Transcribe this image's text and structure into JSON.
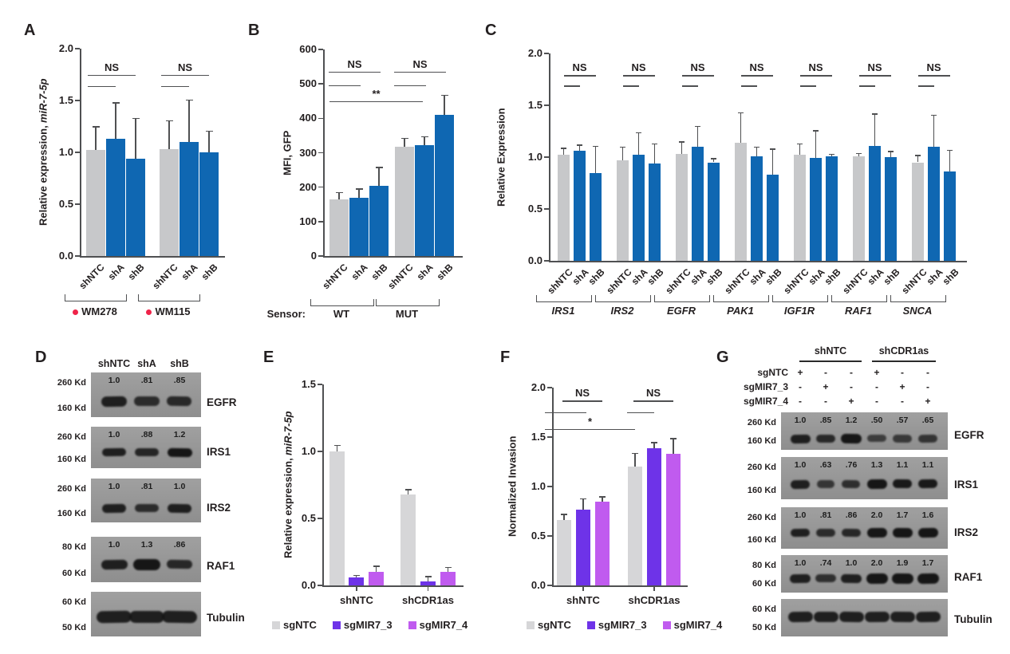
{
  "colors": {
    "gray": "#c7c8ca",
    "blue": "#0f67b2",
    "violet": "#6e33e8",
    "orchid": "#c05bef",
    "gray_light": "#d6d6d8",
    "axis": "#4f5052",
    "text": "#231f20",
    "red_dot": "#ef2349",
    "blot_bg_top": "#a0a0a0",
    "blot_bg_bottom": "#8e8e8e",
    "blot_band": "#161616"
  },
  "chart_data": [
    {
      "id": "A",
      "type": "bar",
      "panel_label": "A",
      "ylabel_plain": "Relative expression, ",
      "ylabel_italic": "miR-7-5p",
      "ylim": [
        0,
        2.0
      ],
      "yticks": [
        0,
        0.5,
        1,
        1.5,
        2
      ],
      "ytick_labels": [
        "0.0",
        "0.5",
        "1.0",
        "1.5",
        "2.0"
      ],
      "bar_labels": [
        "shNTC",
        "shA",
        "shB",
        "shNTC",
        "shA",
        "shB"
      ],
      "series_colors": [
        "gray",
        "blue",
        "blue",
        "gray",
        "blue",
        "blue"
      ],
      "values": [
        1.02,
        1.13,
        0.94,
        1.03,
        1.1,
        1.0
      ],
      "errors_up": [
        0.22,
        0.34,
        0.38,
        0.27,
        0.4,
        0.2
      ],
      "groups": [
        {
          "label": "WM278",
          "dot": true,
          "bars": [
            0,
            2
          ]
        },
        {
          "label": "WM115",
          "dot": true,
          "bars": [
            3,
            5
          ]
        }
      ],
      "significance": [
        {
          "bars": [
            0,
            2
          ],
          "y": 1.75,
          "label": "NS"
        },
        {
          "bars": [
            0,
            1
          ],
          "y": 1.64,
          "label": ""
        },
        {
          "bars": [
            3,
            5
          ],
          "y": 1.75,
          "label": "NS"
        },
        {
          "bars": [
            3,
            4
          ],
          "y": 1.64,
          "label": ""
        }
      ]
    },
    {
      "id": "B",
      "type": "bar",
      "panel_label": "B",
      "ylabel_plain": "MFI, GFP",
      "ylabel_italic": "",
      "ylim": [
        0,
        600
      ],
      "yticks": [
        0,
        100,
        200,
        300,
        400,
        500,
        600
      ],
      "ytick_labels": [
        "0",
        "100",
        "200",
        "300",
        "400",
        "500",
        "600"
      ],
      "bar_labels": [
        "shNTC",
        "shA",
        "shB",
        "shNTC",
        "shA",
        "shB"
      ],
      "series_colors": [
        "gray",
        "blue",
        "blue",
        "gray",
        "blue",
        "blue"
      ],
      "values": [
        165,
        170,
        205,
        318,
        321,
        410
      ],
      "errors_up": [
        18,
        23,
        50,
        22,
        24,
        55
      ],
      "x_prefix": "Sensor:",
      "groups": [
        {
          "label": "WT",
          "bars": [
            0,
            2
          ]
        },
        {
          "label": "MUT",
          "bars": [
            3,
            5
          ]
        }
      ],
      "significance": [
        {
          "bars": [
            0,
            2
          ],
          "y": 535,
          "label": "NS"
        },
        {
          "bars": [
            0,
            1
          ],
          "y": 496,
          "label": ""
        },
        {
          "bars": [
            3,
            5
          ],
          "y": 535,
          "label": "NS"
        },
        {
          "bars": [
            3,
            4
          ],
          "y": 496,
          "label": ""
        },
        {
          "bars": [
            0,
            3
          ],
          "y": 450,
          "label": "**"
        }
      ]
    },
    {
      "id": "C",
      "type": "bar",
      "panel_label": "C",
      "ylabel_plain": "Relative Expression",
      "ylabel_italic": "",
      "ylim": [
        0,
        2.0
      ],
      "yticks": [
        0,
        0.5,
        1,
        1.5,
        2
      ],
      "ytick_labels": [
        "0.0",
        "0.5",
        "1.0",
        "1.5",
        "2.0"
      ],
      "bar_labels": [
        "shNTC",
        "shA",
        "shB",
        "shNTC",
        "shA",
        "shB",
        "shNTC",
        "shA",
        "shB",
        "shNTC",
        "shA",
        "shB",
        "shNTC",
        "shA",
        "shB",
        "shNTC",
        "shA",
        "shB",
        "shNTC",
        "shA",
        "shB"
      ],
      "series_colors": [
        "gray",
        "blue",
        "blue",
        "gray",
        "blue",
        "blue",
        "gray",
        "blue",
        "blue",
        "gray",
        "blue",
        "blue",
        "gray",
        "blue",
        "blue",
        "gray",
        "blue",
        "blue",
        "gray",
        "blue",
        "blue"
      ],
      "values": [
        1.02,
        1.06,
        0.85,
        0.97,
        1.02,
        0.94,
        1.03,
        1.1,
        0.95,
        1.14,
        1.01,
        0.83,
        1.02,
        0.99,
        1.01,
        1.01,
        1.11,
        1.0,
        0.95,
        1.1,
        0.86
      ],
      "errors_up": [
        0.06,
        0.05,
        0.25,
        0.12,
        0.21,
        0.18,
        0.11,
        0.19,
        0.03,
        0.28,
        0.08,
        0.24,
        0.1,
        0.26,
        0.01,
        0.02,
        0.3,
        0.05,
        0.06,
        0.3,
        0.2
      ],
      "groups": [
        {
          "label": "IRS1",
          "bars": [
            0,
            2
          ]
        },
        {
          "label": "IRS2",
          "bars": [
            3,
            5
          ]
        },
        {
          "label": "EGFR",
          "bars": [
            6,
            8
          ]
        },
        {
          "label": "PAK1",
          "bars": [
            9,
            11
          ]
        },
        {
          "label": "IGF1R",
          "bars": [
            12,
            14
          ]
        },
        {
          "label": "RAF1",
          "bars": [
            15,
            17
          ]
        },
        {
          "label": "SNCA",
          "bars": [
            18,
            20
          ]
        }
      ],
      "significance": [
        {
          "bars": [
            0,
            2
          ],
          "y": 1.79,
          "label": "NS"
        },
        {
          "bars": [
            0,
            1
          ],
          "y": 1.69,
          "label": ""
        },
        {
          "bars": [
            3,
            5
          ],
          "y": 1.79,
          "label": "NS"
        },
        {
          "bars": [
            3,
            4
          ],
          "y": 1.69,
          "label": ""
        },
        {
          "bars": [
            6,
            8
          ],
          "y": 1.79,
          "label": "NS"
        },
        {
          "bars": [
            6,
            7
          ],
          "y": 1.69,
          "label": ""
        },
        {
          "bars": [
            9,
            11
          ],
          "y": 1.79,
          "label": "NS"
        },
        {
          "bars": [
            9,
            10
          ],
          "y": 1.69,
          "label": ""
        },
        {
          "bars": [
            12,
            14
          ],
          "y": 1.79,
          "label": "NS"
        },
        {
          "bars": [
            12,
            13
          ],
          "y": 1.69,
          "label": ""
        },
        {
          "bars": [
            15,
            17
          ],
          "y": 1.79,
          "label": "NS"
        },
        {
          "bars": [
            15,
            16
          ],
          "y": 1.69,
          "label": ""
        },
        {
          "bars": [
            18,
            20
          ],
          "y": 1.79,
          "label": "NS"
        },
        {
          "bars": [
            18,
            19
          ],
          "y": 1.69,
          "label": ""
        }
      ]
    },
    {
      "id": "E",
      "type": "bar",
      "panel_label": "E",
      "ylabel_plain": "Relative expression, ",
      "ylabel_italic": "miR-7-5p",
      "ylim": [
        0,
        1.5
      ],
      "yticks": [
        0,
        0.5,
        1,
        1.5
      ],
      "ytick_labels": [
        "0.0",
        "0.5",
        "1.0",
        "1.5"
      ],
      "bar_labels": [
        "",
        "",
        "",
        "",
        "",
        ""
      ],
      "series_colors": [
        "gray_light",
        "violet",
        "orchid",
        "gray_light",
        "violet",
        "orchid"
      ],
      "values": [
        1.0,
        0.06,
        0.1,
        0.68,
        0.03,
        0.1
      ],
      "errors_up": [
        0.04,
        0.01,
        0.04,
        0.03,
        0.03,
        0.03
      ],
      "groups": [
        {
          "label": "shNTC",
          "bars": [
            0,
            2
          ]
        },
        {
          "label": "shCDR1as",
          "bars": [
            3,
            5
          ]
        }
      ],
      "significance": [],
      "legend": [
        {
          "label": "sgNTC",
          "color": "gray_light"
        },
        {
          "label": "sgMIR7_3",
          "color": "violet"
        },
        {
          "label": "sgMIR7_4",
          "color": "orchid"
        }
      ]
    },
    {
      "id": "F",
      "type": "bar",
      "panel_label": "F",
      "ylabel_plain": "Normalized Invasion",
      "ylabel_italic": "",
      "ylim": [
        0,
        2.0
      ],
      "yticks": [
        0,
        0.5,
        1,
        1.5,
        2
      ],
      "ytick_labels": [
        "0.0",
        "0.5",
        "1.0",
        "1.5",
        "2.0"
      ],
      "bar_labels": [
        "",
        "",
        "",
        "",
        "",
        ""
      ],
      "series_colors": [
        "gray_light",
        "violet",
        "orchid",
        "gray_light",
        "violet",
        "orchid"
      ],
      "values": [
        0.66,
        0.77,
        0.85,
        1.2,
        1.39,
        1.33
      ],
      "errors_up": [
        0.05,
        0.1,
        0.04,
        0.13,
        0.05,
        0.15
      ],
      "groups": [
        {
          "label": "shNTC",
          "bars": [
            0,
            2
          ]
        },
        {
          "label": "shCDR1as",
          "bars": [
            3,
            5
          ]
        }
      ],
      "significance": [
        {
          "bars": [
            0,
            2
          ],
          "y": 1.87,
          "label": "NS"
        },
        {
          "bars": [
            0,
            1
          ],
          "y": 1.75,
          "label": ""
        },
        {
          "bars": [
            3,
            5
          ],
          "y": 1.87,
          "label": "NS"
        },
        {
          "bars": [
            3,
            4
          ],
          "y": 1.75,
          "label": ""
        },
        {
          "bars": [
            0,
            3
          ],
          "y": 1.58,
          "label": "*"
        }
      ],
      "legend": [
        {
          "label": "sgNTC",
          "color": "gray_light"
        },
        {
          "label": "sgMIR7_3",
          "color": "violet"
        },
        {
          "label": "sgMIR7_4",
          "color": "orchid"
        }
      ]
    }
  ],
  "blots": [
    {
      "id": "D",
      "panel_label": "D",
      "col_labels": [
        "shNTC",
        "shA",
        "shB"
      ],
      "rows": [
        {
          "protein": "EGFR",
          "marker_top": "260 Kd",
          "marker_bottom": "160 Kd",
          "values": [
            "1.0",
            ".81",
            ".85"
          ]
        },
        {
          "protein": "IRS1",
          "marker_top": "260 Kd",
          "marker_bottom": "160 Kd",
          "values": [
            "1.0",
            ".88",
            "1.2"
          ]
        },
        {
          "protein": "IRS2",
          "marker_top": "260 Kd",
          "marker_bottom": "160 Kd",
          "values": [
            "1.0",
            ".81",
            "1.0"
          ]
        },
        {
          "protein": "RAF1",
          "marker_top": "80 Kd",
          "marker_bottom": "60 Kd",
          "values": [
            "1.0",
            "1.3",
            ".86"
          ]
        },
        {
          "protein": "Tubulin",
          "marker_top": "60 Kd",
          "marker_bottom": "50 Kd",
          "values": []
        }
      ]
    },
    {
      "id": "G",
      "panel_label": "G",
      "group_headers": [
        "shNTC",
        "shCDR1as"
      ],
      "sg_rows": [
        {
          "label": "sgNTC",
          "signs": [
            "+",
            "-",
            "-",
            "+",
            "-",
            "-"
          ]
        },
        {
          "label": "sgMIR7_3",
          "signs": [
            "-",
            "+",
            "-",
            "-",
            "+",
            "-"
          ]
        },
        {
          "label": "sgMIR7_4",
          "signs": [
            "-",
            "-",
            "+",
            "-",
            "-",
            "+"
          ]
        }
      ],
      "rows": [
        {
          "protein": "EGFR",
          "marker_top": "260 Kd",
          "marker_bottom": "160 Kd",
          "values": [
            "1.0",
            ".85",
            "1.2",
            ".50",
            ".57",
            ".65"
          ]
        },
        {
          "protein": "IRS1",
          "marker_top": "260 Kd",
          "marker_bottom": "160 Kd",
          "values": [
            "1.0",
            ".63",
            ".76",
            "1.3",
            "1.1",
            "1.1"
          ]
        },
        {
          "protein": "IRS2",
          "marker_top": "260 Kd",
          "marker_bottom": "160 Kd",
          "values": [
            "1.0",
            ".81",
            ".86",
            "2.0",
            "1.7",
            "1.6"
          ]
        },
        {
          "protein": "RAF1",
          "marker_top": "80 Kd",
          "marker_bottom": "60 Kd",
          "values": [
            "1.0",
            ".74",
            "1.0",
            "2.0",
            "1.9",
            "1.7"
          ]
        },
        {
          "protein": "Tubulin",
          "marker_top": "60 Kd",
          "marker_bottom": "50 Kd",
          "values": []
        }
      ]
    }
  ]
}
